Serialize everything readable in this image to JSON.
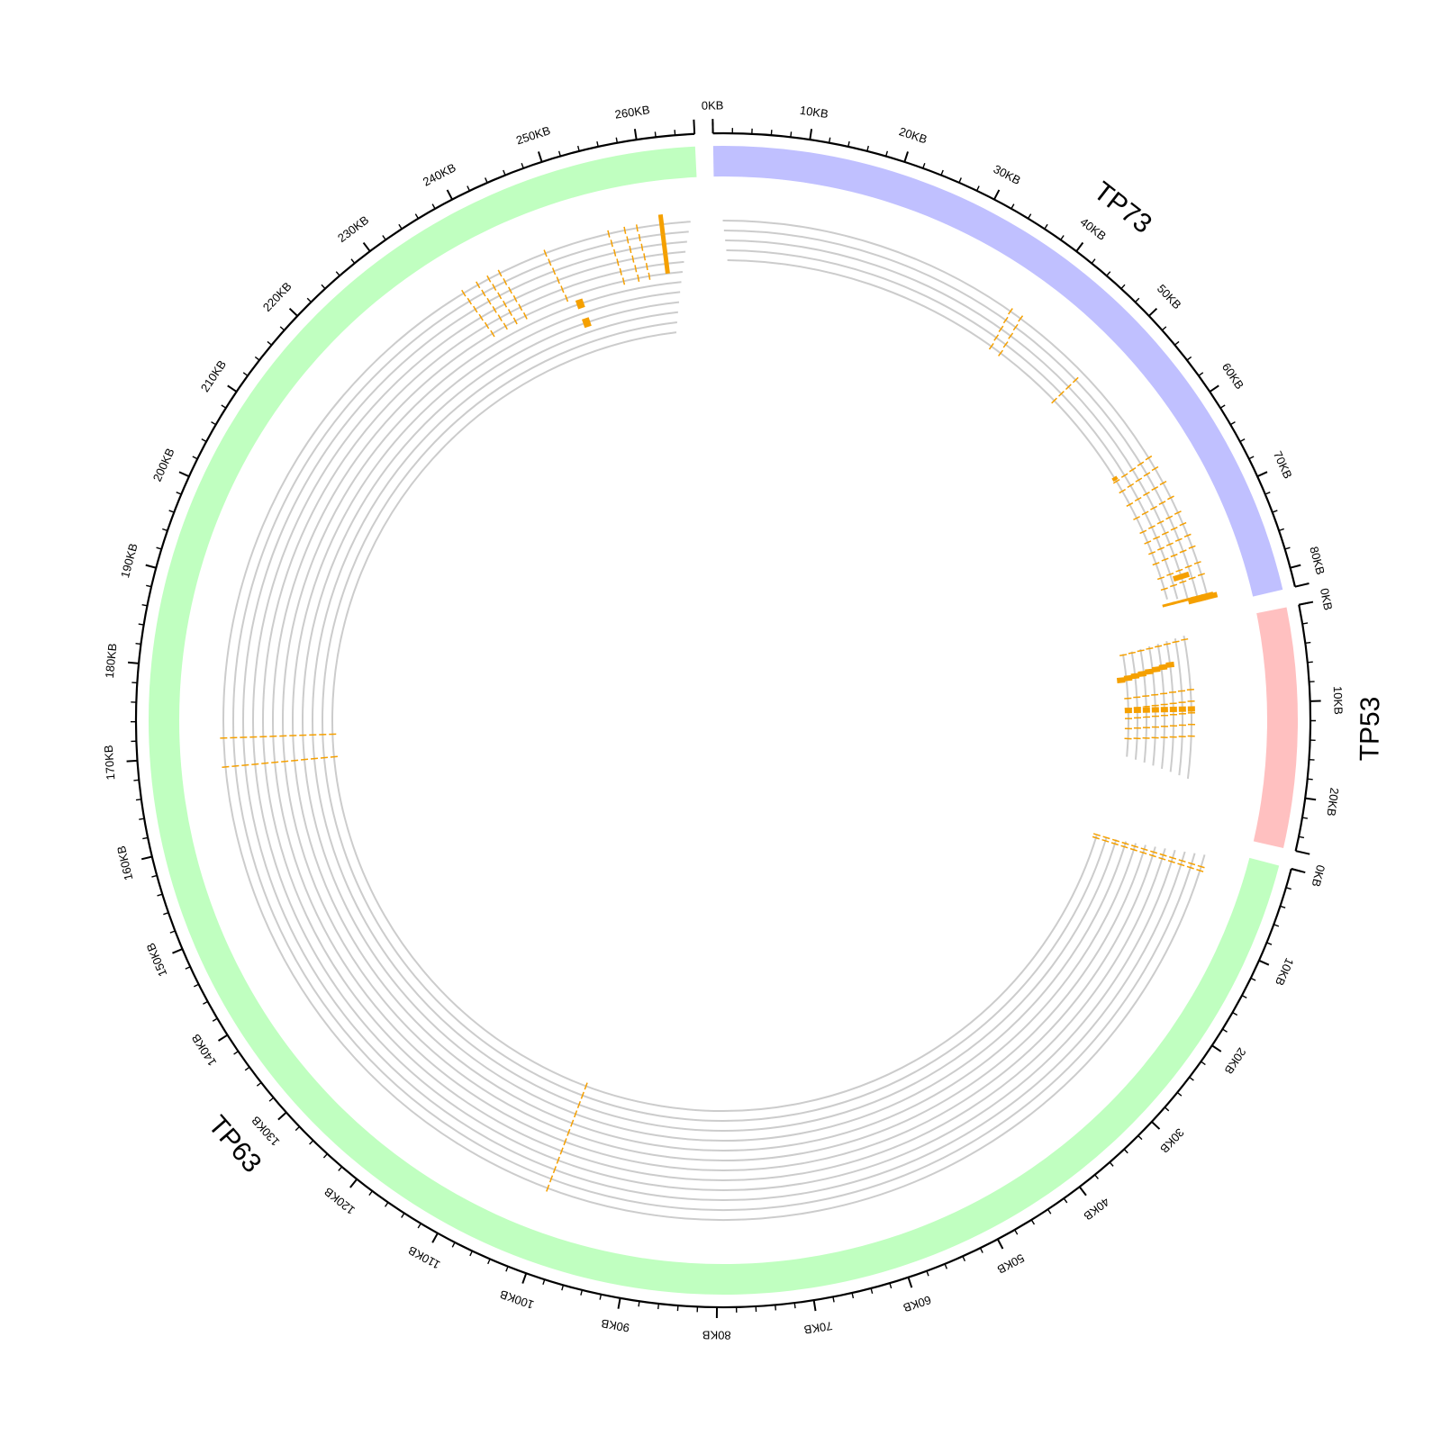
{
  "chart_data": {
    "type": "circos",
    "title": "",
    "tick_unit": "KB",
    "tick_interval_kb": 10,
    "minor_tick_kb": 2,
    "colors": {
      "track_lines": "#cccccc",
      "exons": "#f5a000",
      "axis": "#000000"
    },
    "genes": [
      {
        "name": "TP73",
        "length_kb": 82,
        "color": "#c0c0ff"
      },
      {
        "name": "TP53",
        "length_kb": 25.5,
        "color": "#ffc0c0"
      },
      {
        "name": "TP63",
        "length_kb": 266,
        "color": "#c0ffc0"
      }
    ],
    "transcripts": {
      "TP73": {
        "count": 5,
        "start_kb": 1,
        "end_kb": 81
      },
      "TP53": {
        "count": 8,
        "start_kb": 1,
        "end_kb": 19.5
      },
      "TP63": {
        "count": 12,
        "start_kb": 1,
        "end_kb": 265
      }
    },
    "tick_labels": {
      "TP73": [
        "0KB",
        "10KB",
        "20KB",
        "30KB",
        "40KB",
        "50KB",
        "60KB",
        "70KB",
        "80KB"
      ],
      "TP53": [
        "0KB",
        "10KB",
        "20KB"
      ],
      "TP63": [
        "0KB",
        "10KB",
        "20KB",
        "30KB",
        "40KB",
        "50KB",
        "60KB",
        "70KB",
        "80KB",
        "90KB",
        "100KB",
        "110KB",
        "120KB",
        "130KB",
        "140KB",
        "150KB",
        "160KB",
        "170KB",
        "180KB",
        "190KB",
        "200KB",
        "210KB",
        "220KB",
        "230KB",
        "240KB",
        "250KB",
        "260KB"
      ]
    }
  }
}
